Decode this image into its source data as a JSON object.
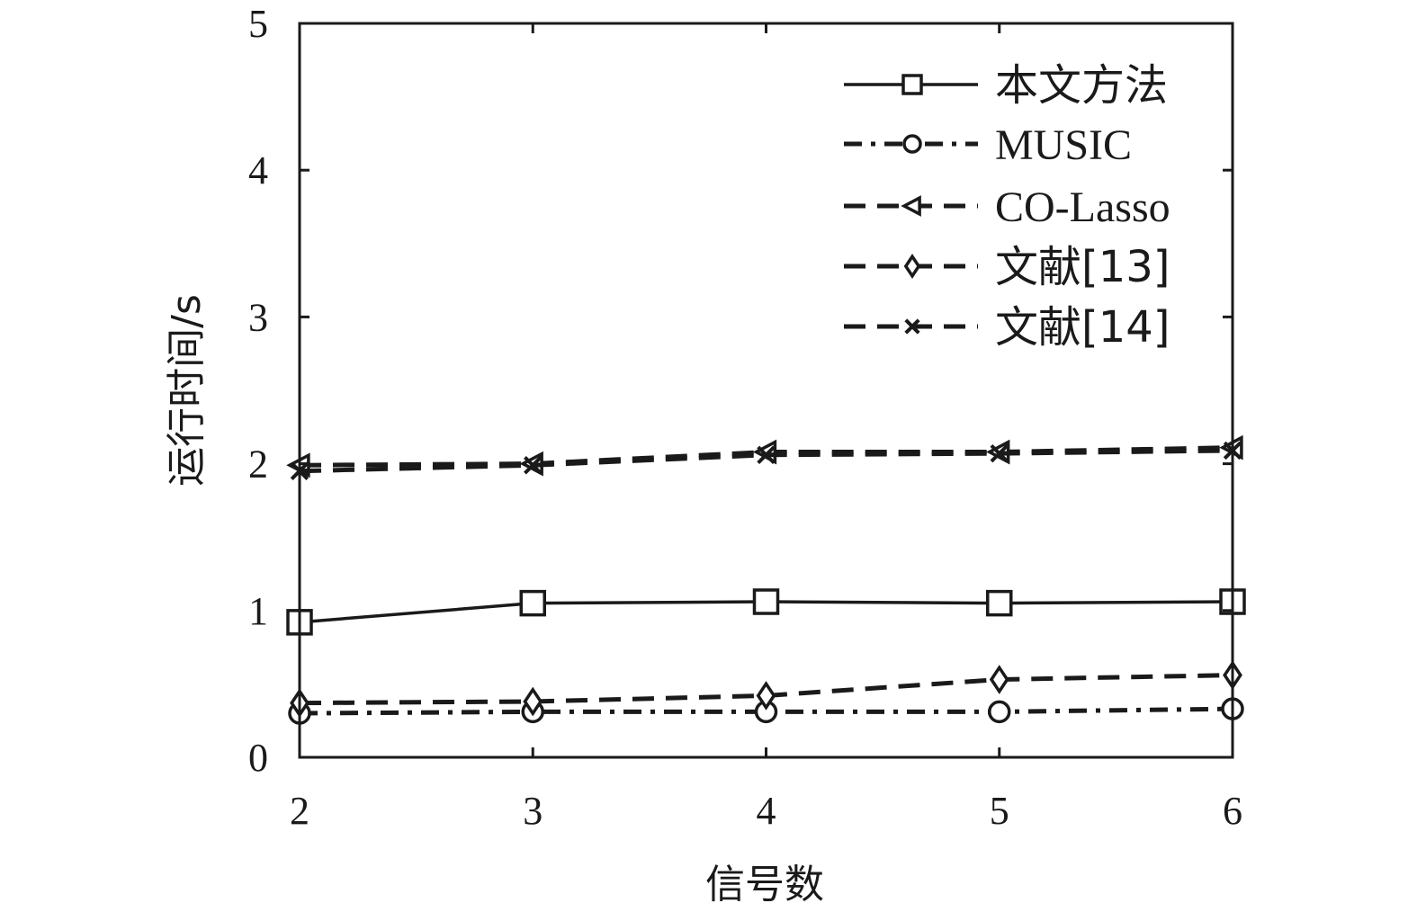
{
  "chart_data": {
    "type": "line",
    "xlabel": "信号数",
    "ylabel": "运行时间/s",
    "x": [
      2,
      3,
      4,
      5,
      6
    ],
    "xticks": [
      "2",
      "3",
      "4",
      "5",
      "6"
    ],
    "yticks": [
      "0",
      "1",
      "2",
      "3",
      "4",
      "5"
    ],
    "xlim": [
      2,
      6
    ],
    "ylim": [
      0,
      5
    ],
    "grid": false,
    "legend_position": "top-right",
    "series": [
      {
        "name": "本文方法",
        "values": [
          0.92,
          1.05,
          1.06,
          1.05,
          1.06
        ],
        "marker": "square-icon",
        "line_style": "solid"
      },
      {
        "name": "MUSIC",
        "values": [
          0.3,
          0.31,
          0.31,
          0.31,
          0.33
        ],
        "marker": "circle-icon",
        "line_style": "dashdot"
      },
      {
        "name": "CO-Lasso",
        "values": [
          1.99,
          2.0,
          2.08,
          2.08,
          2.11
        ],
        "marker": "triangle-left-icon",
        "line_style": "dashed"
      },
      {
        "name": "文献[13]",
        "values": [
          0.37,
          0.38,
          0.42,
          0.53,
          0.56
        ],
        "marker": "diamond-icon",
        "line_style": "dashed"
      },
      {
        "name": "文献[14]",
        "values": [
          1.95,
          1.99,
          2.06,
          2.07,
          2.09
        ],
        "marker": "x-icon",
        "line_style": "dashed"
      }
    ]
  }
}
